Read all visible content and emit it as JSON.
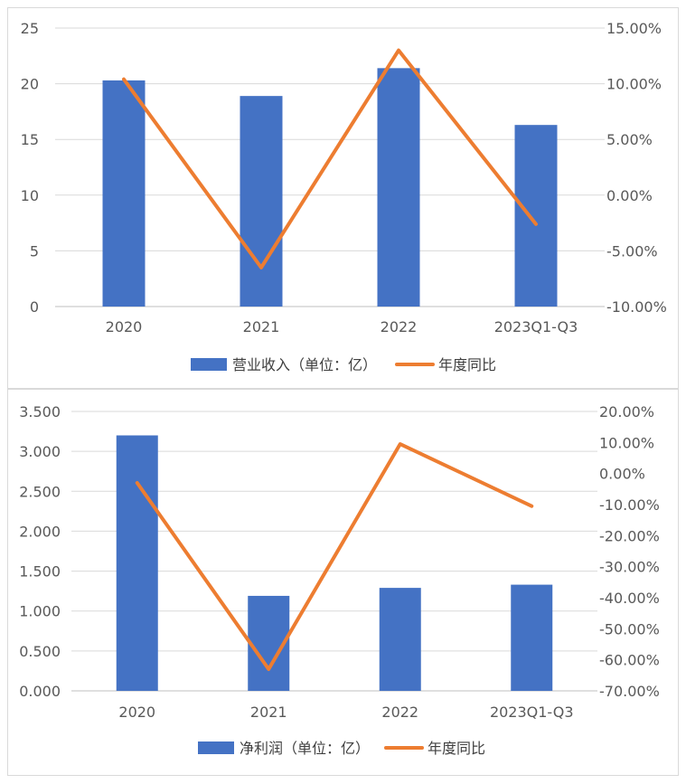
{
  "chart_data": [
    {
      "type": "bar+line",
      "categories": [
        "2020",
        "2021",
        "2022",
        "2023Q1-Q3"
      ],
      "series": [
        {
          "name": "营业收入（单位：亿）",
          "type": "bar",
          "axis": "left",
          "values": [
            20.3,
            18.9,
            21.4,
            16.3
          ]
        },
        {
          "name": "年度同比",
          "type": "line",
          "axis": "right",
          "values": [
            10.4,
            -6.5,
            13.0,
            -2.6
          ]
        }
      ],
      "y_left": {
        "min": 0,
        "max": 25,
        "step": 5,
        "ticks": [
          "0",
          "5",
          "10",
          "15",
          "20",
          "25"
        ]
      },
      "y_right": {
        "min": -10,
        "max": 15,
        "step": 5,
        "ticks": [
          "-10.00%",
          "-5.00%",
          "0.00%",
          "5.00%",
          "10.00%",
          "15.00%"
        ]
      },
      "legend_position": "bottom",
      "colors": {
        "bar": "#4472C4",
        "line": "#ED7D31"
      },
      "gridlines": true
    },
    {
      "type": "bar+line",
      "categories": [
        "2020",
        "2021",
        "2022",
        "2023Q1-Q3"
      ],
      "series": [
        {
          "name": "净利润（单位：亿）",
          "type": "bar",
          "axis": "left",
          "values": [
            3.2,
            1.19,
            1.29,
            1.33
          ]
        },
        {
          "name": "年度同比",
          "type": "line",
          "axis": "right",
          "values": [
            -3.0,
            -63.0,
            9.5,
            -10.5
          ]
        }
      ],
      "y_left": {
        "min": 0,
        "max": 3.5,
        "step": 0.5,
        "ticks": [
          "0.000",
          "0.500",
          "1.000",
          "1.500",
          "2.000",
          "2.500",
          "3.000",
          "3.500"
        ]
      },
      "y_right": {
        "min": -70,
        "max": 20,
        "step": 10,
        "ticks": [
          "-70.00%",
          "-60.00%",
          "-50.00%",
          "-40.00%",
          "-30.00%",
          "-20.00%",
          "-10.00%",
          "0.00%",
          "10.00%",
          "20.00%"
        ]
      },
      "legend_position": "bottom",
      "colors": {
        "bar": "#4472C4",
        "line": "#ED7D31"
      },
      "gridlines": true
    }
  ]
}
